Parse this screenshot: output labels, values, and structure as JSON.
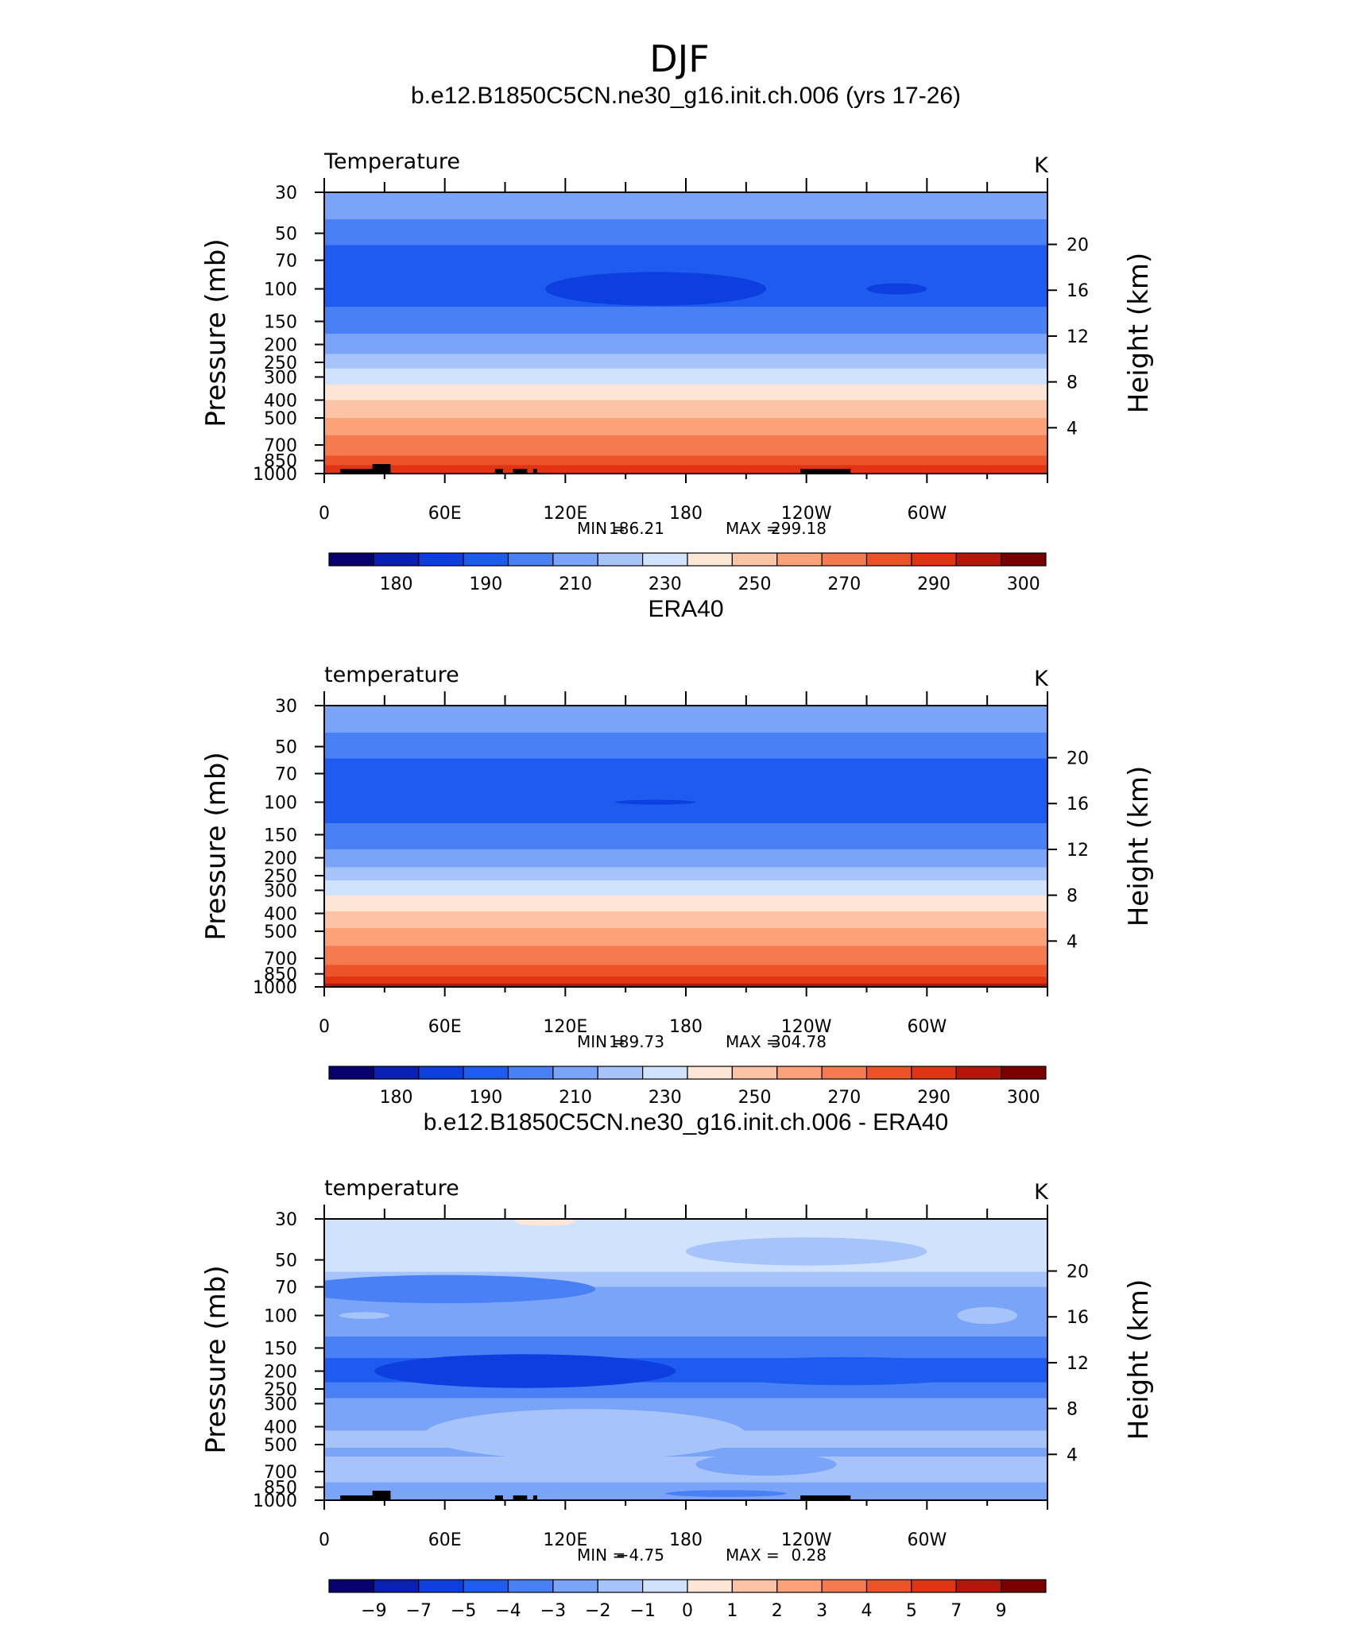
{
  "figure": {
    "season_title": "DJF"
  },
  "chart_data": [
    {
      "type": "heatmap",
      "title": "b.e12.B1850C5CN.ne30_g16.init.ch.006 (yrs 17-26)",
      "variable": "Temperature",
      "units": "K",
      "ylabel": "Pressure (mb)",
      "ylabel_right": "Height (km)",
      "pressure_ticks": [
        "30",
        "50",
        "70",
        "100",
        "150",
        "200",
        "250",
        "300",
        "400",
        "500",
        "700",
        "850",
        "1000"
      ],
      "height_ticks": [
        "20",
        "16",
        "12",
        "8",
        "4"
      ],
      "lon_ticks": [
        "0",
        "60E",
        "120E",
        "180",
        "120W",
        "60W"
      ],
      "min_label": "MIN =",
      "min_value": "186.21",
      "max_label": "MAX =",
      "max_value": "299.18",
      "colorbar": {
        "labels": [
          "180",
          "190",
          "210",
          "230",
          "250",
          "270",
          "290",
          "300"
        ],
        "colors": [
          "#08006e",
          "#0a1fb4",
          "#0d3fe0",
          "#1e5cf0",
          "#4a80f5",
          "#7aa4f7",
          "#a6c4fa",
          "#d0e2fd",
          "#fde6d6",
          "#fcc4a4",
          "#fba27a",
          "#f67a50",
          "#ed5328",
          "#e03412",
          "#b5160a",
          "#7a0000"
        ]
      },
      "bands": [
        {
          "p": 30,
          "color": "#7aa4f7"
        },
        {
          "p": 42,
          "color": "#4a80f5"
        },
        {
          "p": 58,
          "color": "#1e5cf0"
        },
        {
          "p": 125,
          "color": "#4a80f5"
        },
        {
          "p": 175,
          "color": "#7aa4f7"
        },
        {
          "p": 225,
          "color": "#a6c4fa"
        },
        {
          "p": 270,
          "color": "#d0e2fd"
        },
        {
          "p": 330,
          "color": "#fde6d6"
        },
        {
          "p": 400,
          "color": "#fcc4a4"
        },
        {
          "p": 500,
          "color": "#fba27a"
        },
        {
          "p": 620,
          "color": "#f67a50"
        },
        {
          "p": 800,
          "color": "#ed5328"
        },
        {
          "p": 900,
          "color": "#e03412"
        }
      ],
      "features": [
        {
          "lon": 165,
          "p": 100,
          "w": 110,
          "h": 0.06,
          "color": "#0d3fe0"
        },
        {
          "lon": 285,
          "p": 100,
          "w": 30,
          "h": 0.02,
          "color": "#0d3fe0"
        }
      ],
      "terrain": true
    },
    {
      "type": "heatmap",
      "title": "ERA40",
      "variable": "temperature",
      "units": "K",
      "ylabel": "Pressure (mb)",
      "ylabel_right": "Height (km)",
      "pressure_ticks": [
        "30",
        "50",
        "70",
        "100",
        "150",
        "200",
        "250",
        "300",
        "400",
        "500",
        "700",
        "850",
        "1000"
      ],
      "height_ticks": [
        "20",
        "16",
        "12",
        "8",
        "4"
      ],
      "lon_ticks": [
        "0",
        "60E",
        "120E",
        "180",
        "120W",
        "60W"
      ],
      "min_label": "MIN =",
      "min_value": "189.73",
      "max_label": "MAX =",
      "max_value": "304.78",
      "colorbar": {
        "labels": [
          "180",
          "190",
          "210",
          "230",
          "250",
          "270",
          "290",
          "300"
        ],
        "colors": [
          "#08006e",
          "#0a1fb4",
          "#0d3fe0",
          "#1e5cf0",
          "#4a80f5",
          "#7aa4f7",
          "#a6c4fa",
          "#d0e2fd",
          "#fde6d6",
          "#fcc4a4",
          "#fba27a",
          "#f67a50",
          "#ed5328",
          "#e03412",
          "#b5160a",
          "#7a0000"
        ]
      },
      "bands": [
        {
          "p": 30,
          "color": "#7aa4f7"
        },
        {
          "p": 42,
          "color": "#4a80f5"
        },
        {
          "p": 58,
          "color": "#1e5cf0"
        },
        {
          "p": 130,
          "color": "#4a80f5"
        },
        {
          "p": 180,
          "color": "#7aa4f7"
        },
        {
          "p": 225,
          "color": "#a6c4fa"
        },
        {
          "p": 265,
          "color": "#d0e2fd"
        },
        {
          "p": 320,
          "color": "#fde6d6"
        },
        {
          "p": 390,
          "color": "#fcc4a4"
        },
        {
          "p": 480,
          "color": "#fba27a"
        },
        {
          "p": 600,
          "color": "#f67a50"
        },
        {
          "p": 760,
          "color": "#ed5328"
        },
        {
          "p": 880,
          "color": "#e03412"
        },
        {
          "p": 960,
          "color": "#b5160a"
        }
      ],
      "features": [
        {
          "lon": 165,
          "p": 100,
          "w": 40,
          "h": 0.008,
          "color": "#0d3fe0"
        }
      ],
      "terrain": false
    },
    {
      "type": "heatmap",
      "title": "b.e12.B1850C5CN.ne30_g16.init.ch.006 - ERA40",
      "variable": "temperature",
      "units": "K",
      "ylabel": "Pressure (mb)",
      "ylabel_right": "Height (km)",
      "pressure_ticks": [
        "30",
        "50",
        "70",
        "100",
        "150",
        "200",
        "250",
        "300",
        "400",
        "500",
        "700",
        "850",
        "1000"
      ],
      "height_ticks": [
        "20",
        "16",
        "12",
        "8",
        "4"
      ],
      "lon_ticks": [
        "0",
        "60E",
        "120E",
        "180",
        "120W",
        "60W"
      ],
      "min_label": "MIN =",
      "min_value": "−4.75",
      "max_label": "MAX =",
      "max_value": "0.28",
      "colorbar": {
        "labels": [
          "−9",
          "−7",
          "−5",
          "−4",
          "−3",
          "−2",
          "−1",
          "0",
          "1",
          "2",
          "3",
          "4",
          "5",
          "7",
          "9"
        ],
        "colors": [
          "#08006e",
          "#0a1fb4",
          "#0d3fe0",
          "#1e5cf0",
          "#4a80f5",
          "#7aa4f7",
          "#a6c4fa",
          "#d0e2fd",
          "#fde6d6",
          "#fcc4a4",
          "#fba27a",
          "#f67a50",
          "#ed5328",
          "#e03412",
          "#b5160a",
          "#7a0000"
        ]
      },
      "bands": [
        {
          "p": 30,
          "color": "#d0e2fd"
        },
        {
          "p": 58,
          "color": "#a6c4fa"
        },
        {
          "p": 70,
          "color": "#7aa4f7"
        },
        {
          "p": 130,
          "color": "#4a80f5"
        },
        {
          "p": 170,
          "color": "#1e5cf0"
        },
        {
          "p": 230,
          "color": "#4a80f5"
        },
        {
          "p": 280,
          "color": "#7aa4f7"
        },
        {
          "p": 420,
          "color": "#a6c4fa"
        },
        {
          "p": 520,
          "color": "#7aa4f7"
        },
        {
          "p": 580,
          "color": "#a6c4fa"
        },
        {
          "p": 800,
          "color": "#7aa4f7"
        }
      ],
      "features": [
        {
          "lon": 110,
          "p": 31,
          "w": 30,
          "h": 0.015,
          "color": "#fde6d6"
        },
        {
          "lon": 60,
          "p": 72,
          "w": 150,
          "h": 0.05,
          "color": "#4a80f5"
        },
        {
          "lon": 20,
          "p": 100,
          "w": 25,
          "h": 0.012,
          "color": "#a6c4fa"
        },
        {
          "lon": 330,
          "p": 100,
          "w": 30,
          "h": 0.03,
          "color": "#a6c4fa"
        },
        {
          "lon": 240,
          "p": 45,
          "w": 120,
          "h": 0.05,
          "color": "#a6c4fa"
        },
        {
          "lon": 100,
          "p": 200,
          "w": 150,
          "h": 0.06,
          "color": "#0d3fe0"
        },
        {
          "lon": 260,
          "p": 200,
          "w": 140,
          "h": 0.05,
          "color": "#1e5cf0"
        },
        {
          "lon": 130,
          "p": 440,
          "w": 160,
          "h": 0.09,
          "color": "#a6c4fa"
        },
        {
          "lon": 220,
          "p": 640,
          "w": 70,
          "h": 0.04,
          "color": "#7aa4f7"
        },
        {
          "lon": 200,
          "p": 920,
          "w": 60,
          "h": 0.012,
          "color": "#4a80f5"
        }
      ],
      "terrain": true
    }
  ]
}
